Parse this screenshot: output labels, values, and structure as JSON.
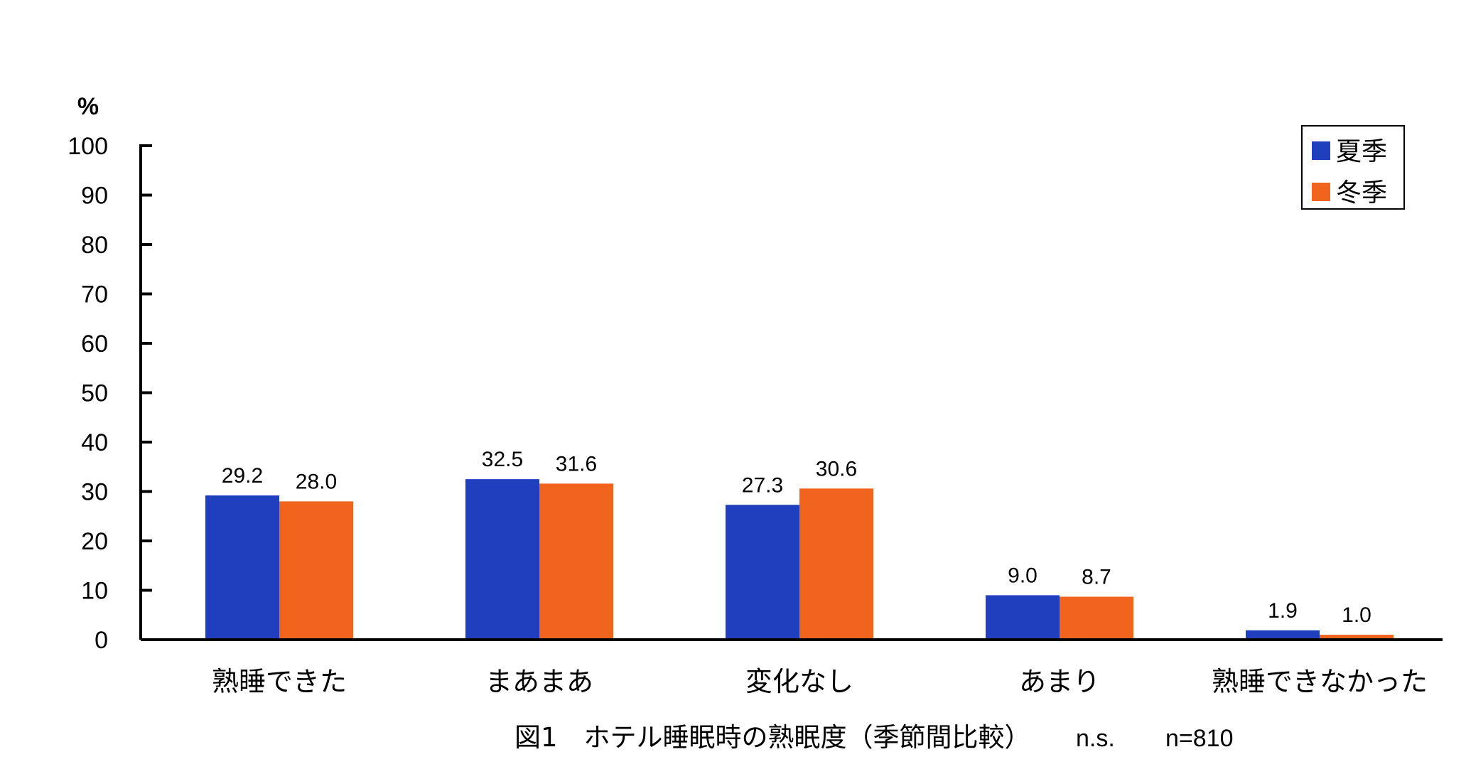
{
  "chart_data": {
    "type": "bar",
    "ylabel": "%",
    "ylim": [
      0,
      100
    ],
    "yticks": [
      0,
      10,
      20,
      30,
      40,
      50,
      60,
      70,
      80,
      90,
      100
    ],
    "categories": [
      "熟睡できた",
      "まあまあ",
      "変化なし",
      "あまり",
      "熟睡できなかった"
    ],
    "series": [
      {
        "name": "夏季",
        "color": "#1f3fbf",
        "values": [
          29.2,
          32.5,
          27.3,
          9.0,
          1.9
        ]
      },
      {
        "name": "冬季",
        "color": "#f0641e",
        "values": [
          28.0,
          31.6,
          30.6,
          8.7,
          1.0
        ]
      }
    ],
    "value_labels": [
      [
        "29.2",
        "32.5",
        "27.3",
        "9.0",
        "1.9"
      ],
      [
        "28.0",
        "31.6",
        "30.6",
        "8.7",
        "1.0"
      ]
    ],
    "legend_position": "top-right",
    "grid": false
  },
  "caption": {
    "title": "図1　ホテル睡眠時の熟眠度（季節間比較）",
    "significance": "n.s.",
    "sample_size": "n=810"
  }
}
